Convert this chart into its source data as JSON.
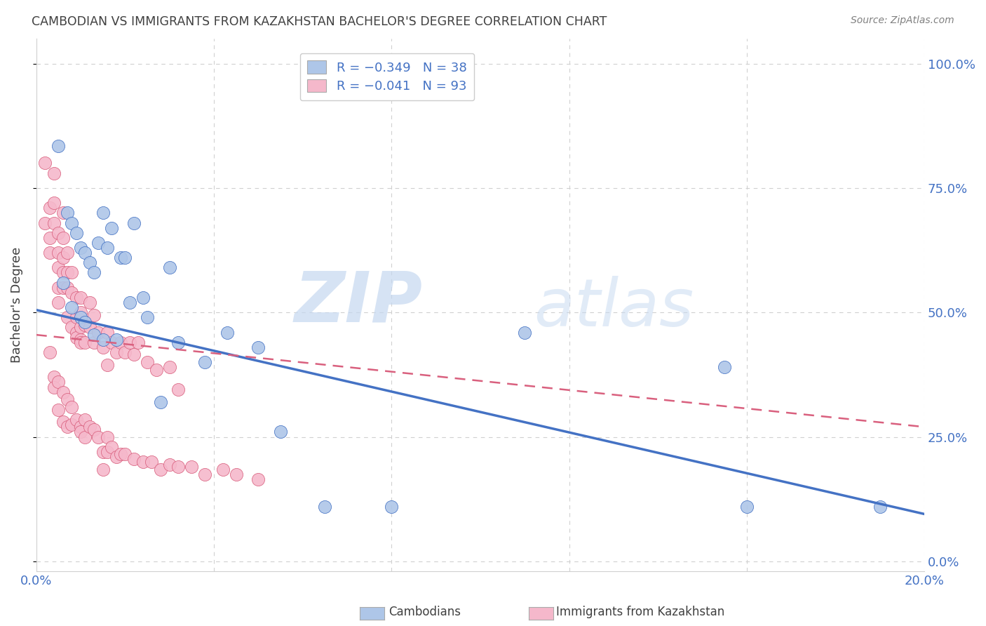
{
  "title": "CAMBODIAN VS IMMIGRANTS FROM KAZAKHSTAN BACHELOR'S DEGREE CORRELATION CHART",
  "source": "Source: ZipAtlas.com",
  "ylabel": "Bachelor's Degree",
  "watermark_zip": "ZIP",
  "watermark_atlas": "atlas",
  "xlim": [
    0.0,
    0.2
  ],
  "ylim": [
    -0.02,
    1.05
  ],
  "xtick_positions": [
    0.0,
    0.04,
    0.08,
    0.12,
    0.16,
    0.2
  ],
  "xtick_labels": [
    "0.0%",
    "",
    "",
    "",
    "",
    "20.0%"
  ],
  "ytick_positions": [
    0.0,
    0.25,
    0.5,
    0.75,
    1.0
  ],
  "ytick_labels": [
    "0.0%",
    "25.0%",
    "50.0%",
    "75.0%",
    "100.0%"
  ],
  "legend1_label": "R = −0.349   N = 38",
  "legend2_label": "R = −0.041   N = 93",
  "cambodian_color": "#aec6e8",
  "cambodian_edge": "#4472c4",
  "kazakhstan_color": "#f5b8cb",
  "kazakhstan_edge": "#d9607e",
  "blue_line_color": "#4472c4",
  "pink_line_color": "#d9607e",
  "grid_color": "#d0d0d0",
  "background_color": "#ffffff",
  "title_color": "#404040",
  "axis_label_color": "#4472c4",
  "source_color": "#808080",
  "blue_line_x0": 0.0,
  "blue_line_y0": 0.505,
  "blue_line_x1": 0.2,
  "blue_line_y1": 0.095,
  "pink_line_x0": 0.0,
  "pink_line_y0": 0.455,
  "pink_line_x1": 0.2,
  "pink_line_y1": 0.27,
  "cambodian_scatter_x": [
    0.005,
    0.007,
    0.008,
    0.009,
    0.01,
    0.011,
    0.012,
    0.013,
    0.014,
    0.015,
    0.016,
    0.017,
    0.019,
    0.02,
    0.022,
    0.025,
    0.028,
    0.032,
    0.038,
    0.043,
    0.05,
    0.055,
    0.065,
    0.08,
    0.11,
    0.155,
    0.16,
    0.19,
    0.006,
    0.008,
    0.01,
    0.011,
    0.013,
    0.015,
    0.018,
    0.021,
    0.024,
    0.03
  ],
  "cambodian_scatter_y": [
    0.835,
    0.7,
    0.68,
    0.66,
    0.63,
    0.62,
    0.6,
    0.58,
    0.64,
    0.7,
    0.63,
    0.67,
    0.61,
    0.61,
    0.68,
    0.49,
    0.32,
    0.44,
    0.4,
    0.46,
    0.43,
    0.26,
    0.11,
    0.11,
    0.46,
    0.39,
    0.11,
    0.11,
    0.56,
    0.51,
    0.49,
    0.48,
    0.455,
    0.445,
    0.445,
    0.52,
    0.53,
    0.59
  ],
  "kazakhstan_scatter_x": [
    0.002,
    0.002,
    0.003,
    0.003,
    0.003,
    0.004,
    0.004,
    0.004,
    0.005,
    0.005,
    0.005,
    0.005,
    0.005,
    0.006,
    0.006,
    0.006,
    0.006,
    0.006,
    0.007,
    0.007,
    0.007,
    0.007,
    0.008,
    0.008,
    0.008,
    0.009,
    0.009,
    0.009,
    0.009,
    0.01,
    0.01,
    0.01,
    0.01,
    0.01,
    0.011,
    0.011,
    0.012,
    0.012,
    0.013,
    0.013,
    0.014,
    0.015,
    0.016,
    0.016,
    0.017,
    0.018,
    0.019,
    0.02,
    0.021,
    0.022,
    0.023,
    0.025,
    0.027,
    0.03,
    0.032,
    0.003,
    0.004,
    0.004,
    0.005,
    0.005,
    0.006,
    0.006,
    0.007,
    0.007,
    0.008,
    0.008,
    0.009,
    0.01,
    0.01,
    0.011,
    0.011,
    0.012,
    0.013,
    0.014,
    0.015,
    0.015,
    0.016,
    0.016,
    0.017,
    0.018,
    0.019,
    0.02,
    0.022,
    0.024,
    0.026,
    0.028,
    0.03,
    0.032,
    0.035,
    0.038,
    0.042,
    0.045,
    0.05
  ],
  "kazakhstan_scatter_y": [
    0.8,
    0.68,
    0.71,
    0.65,
    0.62,
    0.78,
    0.72,
    0.68,
    0.66,
    0.62,
    0.59,
    0.55,
    0.52,
    0.7,
    0.65,
    0.61,
    0.58,
    0.55,
    0.62,
    0.58,
    0.55,
    0.49,
    0.58,
    0.54,
    0.47,
    0.53,
    0.49,
    0.46,
    0.45,
    0.53,
    0.5,
    0.47,
    0.445,
    0.44,
    0.475,
    0.44,
    0.52,
    0.47,
    0.495,
    0.44,
    0.46,
    0.43,
    0.46,
    0.395,
    0.44,
    0.42,
    0.44,
    0.42,
    0.44,
    0.415,
    0.44,
    0.4,
    0.385,
    0.39,
    0.345,
    0.42,
    0.37,
    0.35,
    0.36,
    0.305,
    0.34,
    0.28,
    0.325,
    0.27,
    0.31,
    0.275,
    0.285,
    0.27,
    0.26,
    0.285,
    0.25,
    0.27,
    0.265,
    0.25,
    0.22,
    0.185,
    0.25,
    0.22,
    0.23,
    0.21,
    0.215,
    0.215,
    0.205,
    0.2,
    0.2,
    0.185,
    0.195,
    0.19,
    0.19,
    0.175,
    0.185,
    0.175,
    0.165
  ]
}
